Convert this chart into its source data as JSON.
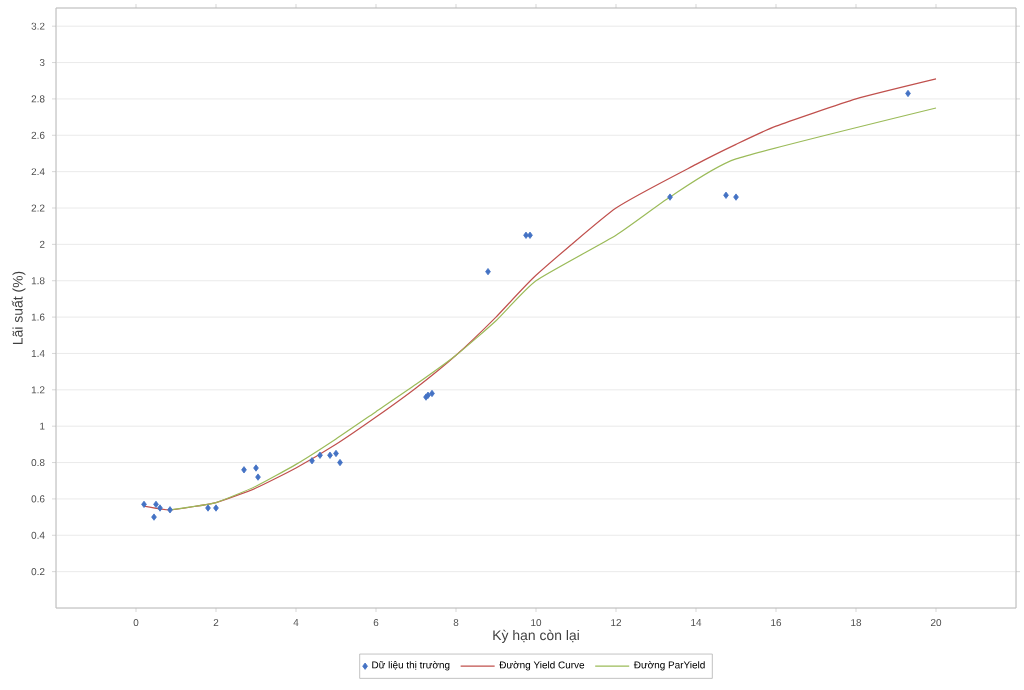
{
  "chart_data": {
    "type": "scatter",
    "xlabel": "Kỳ hạn còn lại",
    "ylabel": "Lãi suất (%)",
    "xlim": [
      -2,
      22
    ],
    "xticks": [
      0,
      2,
      4,
      6,
      8,
      10,
      12,
      14,
      16,
      18,
      20
    ],
    "ylim": [
      0,
      3.3
    ],
    "yticks": [
      0.2,
      0.4,
      0.6,
      0.8,
      1,
      1.2,
      1.4,
      1.6,
      1.8,
      2,
      2.2,
      2.4,
      2.6,
      2.8,
      3,
      3.2
    ],
    "grid": "y",
    "legend": "bottom",
    "series": [
      {
        "name": "Dữ liệu thị trường",
        "marker": "diamond",
        "color": "#4472c4",
        "x": [
          0.2,
          0.45,
          0.5,
          0.6,
          0.85,
          1.8,
          2.0,
          2.7,
          3.0,
          3.05,
          4.4,
          4.6,
          4.85,
          5.0,
          5.1,
          7.25,
          7.3,
          7.4,
          8.8,
          9.75,
          9.85,
          13.35,
          14.75,
          15.0,
          19.3
        ],
        "values": [
          0.57,
          0.5,
          0.57,
          0.55,
          0.54,
          0.55,
          0.55,
          0.76,
          0.77,
          0.72,
          0.81,
          0.84,
          0.84,
          0.85,
          0.8,
          1.16,
          1.17,
          1.18,
          1.85,
          2.05,
          2.05,
          2.26,
          2.27,
          2.26,
          2.83
        ]
      },
      {
        "name": "Đường Yield Curve",
        "type": "line",
        "marker": "none",
        "color": "#c0504d",
        "x": [
          0.2,
          0.85,
          2,
          3,
          4,
          5,
          6,
          7,
          8,
          9,
          10,
          12,
          14,
          15,
          16,
          18,
          20
        ],
        "values": [
          0.56,
          0.54,
          0.58,
          0.66,
          0.77,
          0.9,
          1.05,
          1.21,
          1.39,
          1.6,
          1.83,
          2.2,
          2.44,
          2.55,
          2.65,
          2.8,
          2.91
        ]
      },
      {
        "name": "Đường ParYield",
        "type": "line",
        "marker": "none",
        "color": "#9bbb59",
        "x": [
          0.85,
          2,
          3,
          4,
          5,
          6,
          7,
          8,
          9,
          10,
          12,
          13.35,
          15,
          20
        ],
        "values": [
          0.54,
          0.58,
          0.67,
          0.79,
          0.93,
          1.08,
          1.23,
          1.39,
          1.58,
          1.8,
          2.05,
          2.26,
          2.47,
          2.75
        ]
      }
    ]
  }
}
